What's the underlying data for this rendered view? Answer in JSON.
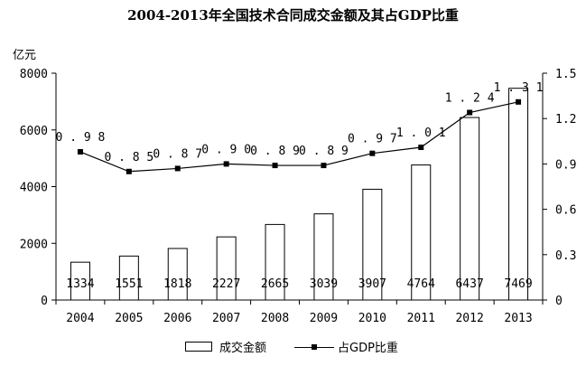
{
  "chart_data": {
    "type": "bar+line",
    "title": "2004-2013年全国技术合同成交金额及其占GDP比重",
    "unit_label": "亿元",
    "categories": [
      "2004",
      "2005",
      "2006",
      "2007",
      "2008",
      "2009",
      "2010",
      "2011",
      "2012",
      "2013"
    ],
    "bar_series": {
      "name": "成交金额",
      "values": [
        1334,
        1551,
        1818,
        2227,
        2665,
        3039,
        3907,
        4764,
        6437,
        7469
      ],
      "labels": [
        "1334",
        "1551",
        "1818",
        "2227",
        "2665",
        "3039",
        "3907",
        "4764",
        "6437",
        "7469"
      ]
    },
    "line_series": {
      "name": "占GDP比重",
      "values": [
        0.98,
        0.85,
        0.87,
        0.9,
        0.89,
        0.89,
        0.97,
        1.01,
        1.24,
        1.31
      ],
      "labels": [
        "0.98",
        "0.85",
        "0.87",
        "0.90",
        "0.89",
        "0.89",
        "0.97",
        "1.01",
        "1.24",
        "1.31"
      ]
    },
    "y_left": {
      "min": 0,
      "max": 8000,
      "ticks": [
        0,
        2000,
        4000,
        6000,
        8000
      ],
      "tick_labels": [
        "0",
        "2000",
        "4000",
        "6000",
        "8000"
      ]
    },
    "y_right": {
      "min": 0,
      "max": 1.5,
      "ticks": [
        0,
        0.3,
        0.6,
        0.9,
        1.2,
        1.5
      ],
      "tick_labels": [
        "0",
        "0.3",
        "0.6",
        "0.9",
        "1.2",
        "1.5"
      ]
    },
    "grid": false,
    "legend_position": "bottom-center",
    "colors": {
      "bar_fill": "#ffffff",
      "bar_stroke": "#000000",
      "line": "#000000",
      "axis": "#000000"
    }
  }
}
